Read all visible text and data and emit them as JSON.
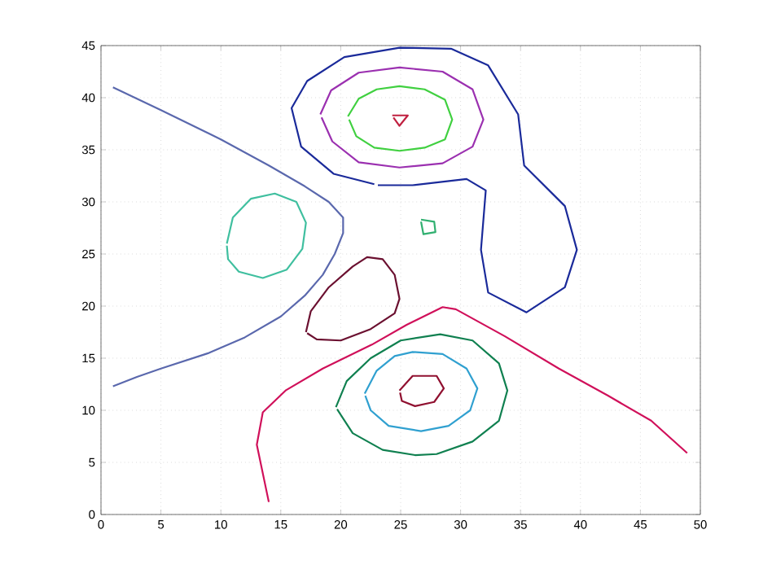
{
  "chart_data": {
    "type": "line",
    "xlim": [
      0,
      50
    ],
    "ylim": [
      0,
      45
    ],
    "xticks": [
      0,
      5,
      10,
      15,
      20,
      25,
      30,
      35,
      40,
      45,
      50
    ],
    "yticks": [
      0,
      5,
      10,
      15,
      20,
      25,
      30,
      35,
      40,
      45
    ],
    "grid": true,
    "marker": "none",
    "line_style": "solid",
    "series": [
      {
        "color": "#5a68ad",
        "x": [
          1,
          5,
          10,
          14,
          17,
          19,
          20.2,
          20.2,
          19.5,
          18.5,
          17,
          15,
          12,
          9,
          5,
          3,
          1
        ],
        "values": [
          41,
          38.8,
          36,
          33.5,
          31.5,
          30,
          28.5,
          27,
          25,
          23,
          21,
          19,
          17,
          15.5,
          14,
          13.2,
          12.3
        ]
      },
      {
        "color": "#3fbf9f",
        "x": [
          10.5,
          11,
          12.5,
          14.5,
          16.3,
          17.1,
          16.8,
          15.5,
          13.5,
          11.5,
          10.6,
          10.5
        ],
        "values": [
          26,
          28.5,
          30.3,
          30.8,
          30,
          28,
          25.5,
          23.5,
          22.7,
          23.3,
          24.5,
          25.8
        ]
      },
      {
        "color": "#6b1030",
        "x": [
          17.1,
          17.5,
          19,
          21,
          22.2,
          23.5,
          24.5,
          24.9,
          24.5,
          22.5,
          20,
          18,
          17.2
        ],
        "values": [
          17.5,
          19.5,
          21.8,
          23.8,
          24.7,
          24.5,
          23,
          20.7,
          19.3,
          17.8,
          16.7,
          16.8,
          17.4
        ]
      },
      {
        "color": "#1a2a9a",
        "x": [
          23.1,
          26,
          30.5,
          32.1,
          31.7,
          32.3,
          35.5,
          38.7,
          39.7,
          38.7,
          35.3,
          34.8,
          32.3,
          29.2,
          24.9,
          20.3,
          17.2,
          15.9,
          16.7,
          19.4,
          22.8
        ],
        "values": [
          31.6,
          31.6,
          32.2,
          31.1,
          25.4,
          21.3,
          19.4,
          21.8,
          25.4,
          29.6,
          33.5,
          38.4,
          43.1,
          44.7,
          44.8,
          43.9,
          41.6,
          39,
          35.3,
          32.7,
          31.7
        ]
      },
      {
        "color": "#9b30b0",
        "x": [
          18.3,
          19.2,
          21.5,
          24.9,
          28.5,
          31,
          31.9,
          31,
          28.5,
          24.9,
          21.5,
          19.3,
          18.4
        ],
        "values": [
          38.4,
          40.7,
          42.4,
          42.9,
          42.5,
          40.8,
          37.9,
          35.3,
          33.7,
          33.3,
          33.8,
          35.8,
          38.1
        ]
      },
      {
        "color": "#40d040",
        "x": [
          20.6,
          21.5,
          23,
          24.9,
          27,
          28.7,
          29.3,
          28.7,
          27,
          24.9,
          22.8,
          21.3,
          20.7
        ],
        "values": [
          38.2,
          39.9,
          40.8,
          41.1,
          40.8,
          39.8,
          37.9,
          36,
          35.2,
          34.9,
          35.2,
          36.3,
          37.9
        ]
      },
      {
        "color": "#c02040",
        "x": [
          24.3,
          25.6,
          24.9,
          24.4
        ],
        "values": [
          38.3,
          38.3,
          37.3,
          38.1
        ]
      },
      {
        "color": "#30b070",
        "x": [
          26.7,
          27.8,
          27.9,
          26.9,
          26.7
        ],
        "values": [
          28.3,
          28.1,
          27.1,
          26.9,
          28.1
        ]
      },
      {
        "color": "#d0105a",
        "x": [
          14.0,
          13.0,
          13.5,
          15.4,
          18.5,
          22.6,
          25.5,
          28.5,
          29.6,
          33.7,
          38.2,
          42.3,
          45.9,
          48.9
        ],
        "values": [
          1.2,
          6.7,
          9.8,
          11.9,
          14.0,
          16.3,
          18.2,
          19.9,
          19.7,
          17.1,
          14,
          11.4,
          9.0,
          5.9
        ]
      },
      {
        "color": "#108050",
        "x": [
          19.6,
          20.5,
          22.5,
          25,
          28.3,
          31,
          33.2,
          33.9,
          33.2,
          31,
          28,
          26.2,
          23.5,
          21,
          19.7
        ],
        "values": [
          10.3,
          12.8,
          15,
          16.7,
          17.3,
          16.7,
          14.5,
          11.9,
          9,
          7,
          5.8,
          5.7,
          6.2,
          7.8,
          10.1
        ]
      },
      {
        "color": "#30a0d0",
        "x": [
          22,
          23,
          24.5,
          26,
          28.5,
          30.5,
          31.4,
          30.8,
          29,
          26.7,
          24,
          22.5,
          22.05
        ],
        "values": [
          11.6,
          13.8,
          15.2,
          15.6,
          15.4,
          14,
          12.1,
          10,
          8.5,
          8,
          8.5,
          10,
          11.4
        ]
      },
      {
        "color": "#901030",
        "x": [
          24.9,
          26,
          28,
          28.6,
          27.8,
          26.2,
          25.1,
          24.95
        ],
        "values": [
          11.9,
          13.3,
          13.3,
          12.1,
          10.8,
          10.4,
          10.9,
          11.7
        ]
      }
    ]
  }
}
